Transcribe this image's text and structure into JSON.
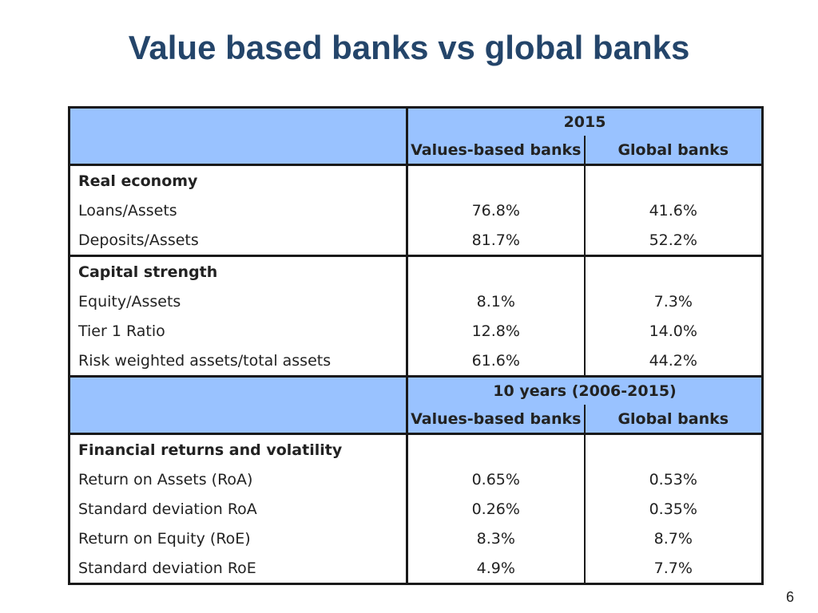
{
  "title": "Value based banks vs global banks",
  "page_number": "6",
  "table": {
    "period1": {
      "label": "2015",
      "col1": "Values-based banks",
      "col2": "Global banks"
    },
    "groups1": [
      {
        "section": "Real economy",
        "rows": [
          {
            "label": "Loans/Assets",
            "v1": "76.8%",
            "v2": "41.6%"
          },
          {
            "label": "Deposits/Assets",
            "v1": "81.7%",
            "v2": "52.2%"
          }
        ]
      },
      {
        "section": "Capital strength",
        "rows": [
          {
            "label": "Equity/Assets",
            "v1": "8.1%",
            "v2": "7.3%"
          },
          {
            "label": "Tier 1 Ratio",
            "v1": "12.8%",
            "v2": "14.0%"
          },
          {
            "label": "Risk weighted assets/total assets",
            "v1": "61.6%",
            "v2": "44.2%"
          }
        ]
      }
    ],
    "period2": {
      "label": "10 years (2006-2015)",
      "col1": "Values-based banks",
      "col2": "Global banks"
    },
    "groups2": [
      {
        "section": "Financial returns and volatility",
        "rows": [
          {
            "label": "Return on Assets (RoA)",
            "v1": "0.65%",
            "v2": "0.53%"
          },
          {
            "label": "Standard deviation RoA",
            "v1": "0.26%",
            "v2": "0.35%"
          },
          {
            "label": "Return on Equity (RoE)",
            "v1": "8.3%",
            "v2": "8.7%"
          },
          {
            "label": "Standard deviation RoE",
            "v1": "4.9%",
            "v2": "7.7%"
          }
        ]
      }
    ]
  }
}
